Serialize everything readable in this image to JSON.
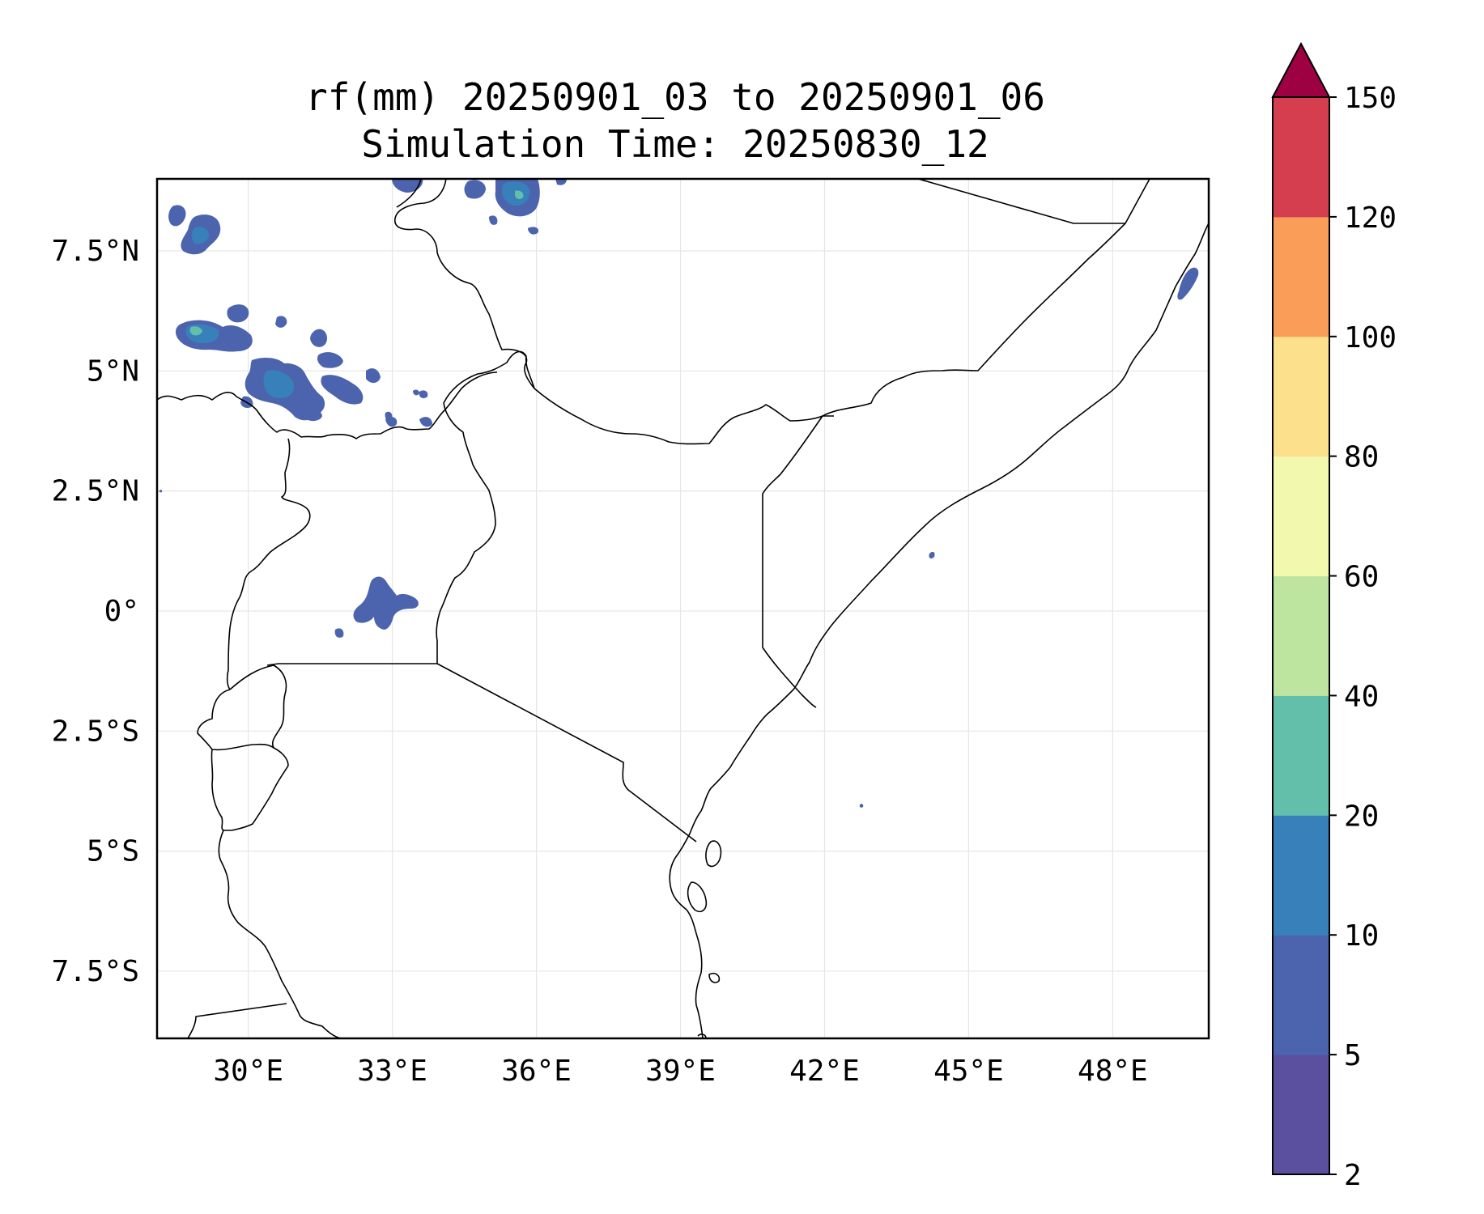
{
  "title": {
    "line1": "rf(mm) 20250901_03 to 20250901_06",
    "line2": "Simulation Time: 20250830_12"
  },
  "map": {
    "extent": {
      "lon": [
        28.1,
        50.0
      ],
      "lat": [
        -8.9,
        9.0
      ]
    },
    "lon_ticks": [
      {
        "value": 30,
        "label": "30°E"
      },
      {
        "value": 33,
        "label": "33°E"
      },
      {
        "value": 36,
        "label": "36°E"
      },
      {
        "value": 39,
        "label": "39°E"
      },
      {
        "value": 42,
        "label": "42°E"
      },
      {
        "value": 45,
        "label": "45°E"
      },
      {
        "value": 48,
        "label": "48°E"
      }
    ],
    "lat_ticks": [
      {
        "value": 7.5,
        "label": "7.5°N"
      },
      {
        "value": 5,
        "label": "5°N"
      },
      {
        "value": 2.5,
        "label": "2.5°N"
      },
      {
        "value": 0,
        "label": "0°"
      },
      {
        "value": -2.5,
        "label": "2.5°S"
      },
      {
        "value": -5,
        "label": "5°S"
      },
      {
        "value": -7.5,
        "label": "7.5°S"
      }
    ],
    "gridlines": true
  },
  "colorbar": {
    "levels": [
      {
        "label": "2",
        "color": "#5b50a0"
      },
      {
        "label": "5",
        "color": "#4c63ad"
      },
      {
        "label": "10",
        "color": "#3880b9"
      },
      {
        "label": "20",
        "color": "#64bfaa"
      },
      {
        "label": "40",
        "color": "#bee5a0"
      },
      {
        "label": "60",
        "color": "#f2f9ae"
      },
      {
        "label": "80",
        "color": "#fce08b"
      },
      {
        "label": "100",
        "color": "#f99d58"
      },
      {
        "label": "120",
        "color": "#d43e4f"
      },
      {
        "label": "150",
        "color": ""
      }
    ],
    "extend_color": "#9e0142"
  },
  "chart_data": {
    "type": "heatmap",
    "title": "rf(mm) 20250901_03 to 20250901_06\nSimulation Time: 20250830_12",
    "variable": "rf(mm)",
    "xlim": [
      28.1,
      50.0
    ],
    "ylim": [
      -8.9,
      9.0
    ],
    "levels": [
      2,
      5,
      10,
      20,
      40,
      60,
      80,
      100,
      120,
      150
    ],
    "extend": "max",
    "rain_cells": [
      {
        "lon": 29.0,
        "lat": 7.8,
        "category": "5-10"
      },
      {
        "lon": 29.2,
        "lat": 7.6,
        "category": "10-20"
      },
      {
        "lon": 29.3,
        "lat": 5.7,
        "category": "10-20"
      },
      {
        "lon": 29.1,
        "lat": 5.7,
        "category": "20-40"
      },
      {
        "lon": 30.8,
        "lat": 4.5,
        "category": "10-20"
      },
      {
        "lon": 31.6,
        "lat": 4.2,
        "category": "5-10"
      },
      {
        "lon": 32.0,
        "lat": 5.3,
        "category": "5-10"
      },
      {
        "lon": 32.9,
        "lat": 4.4,
        "category": "5-10"
      },
      {
        "lon": 32.8,
        "lat": 0.0,
        "category": "5-10"
      },
      {
        "lon": 35.4,
        "lat": 8.5,
        "category": "10-20"
      },
      {
        "lon": 35.6,
        "lat": 8.6,
        "category": "20-40"
      },
      {
        "lon": 33.3,
        "lat": 8.8,
        "category": "5-10"
      },
      {
        "lon": 49.6,
        "lat": 6.2,
        "category": "5-10"
      },
      {
        "lon": 44.2,
        "lat": 1.2,
        "category": "2-5"
      },
      {
        "lon": 42.7,
        "lat": -4.0,
        "category": "2-5"
      }
    ]
  }
}
